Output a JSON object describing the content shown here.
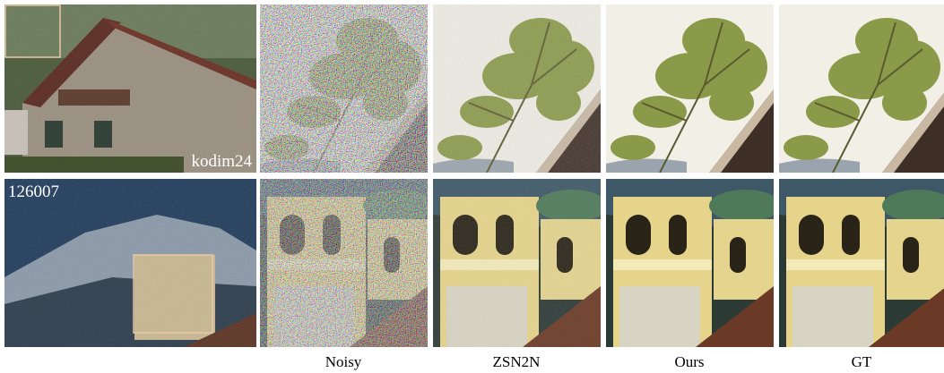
{
  "figure": {
    "row_labels": [
      "kodim24",
      "126007"
    ],
    "column_labels": [
      "Noisy",
      "ZSN2N",
      "Ours",
      "GT"
    ]
  }
}
